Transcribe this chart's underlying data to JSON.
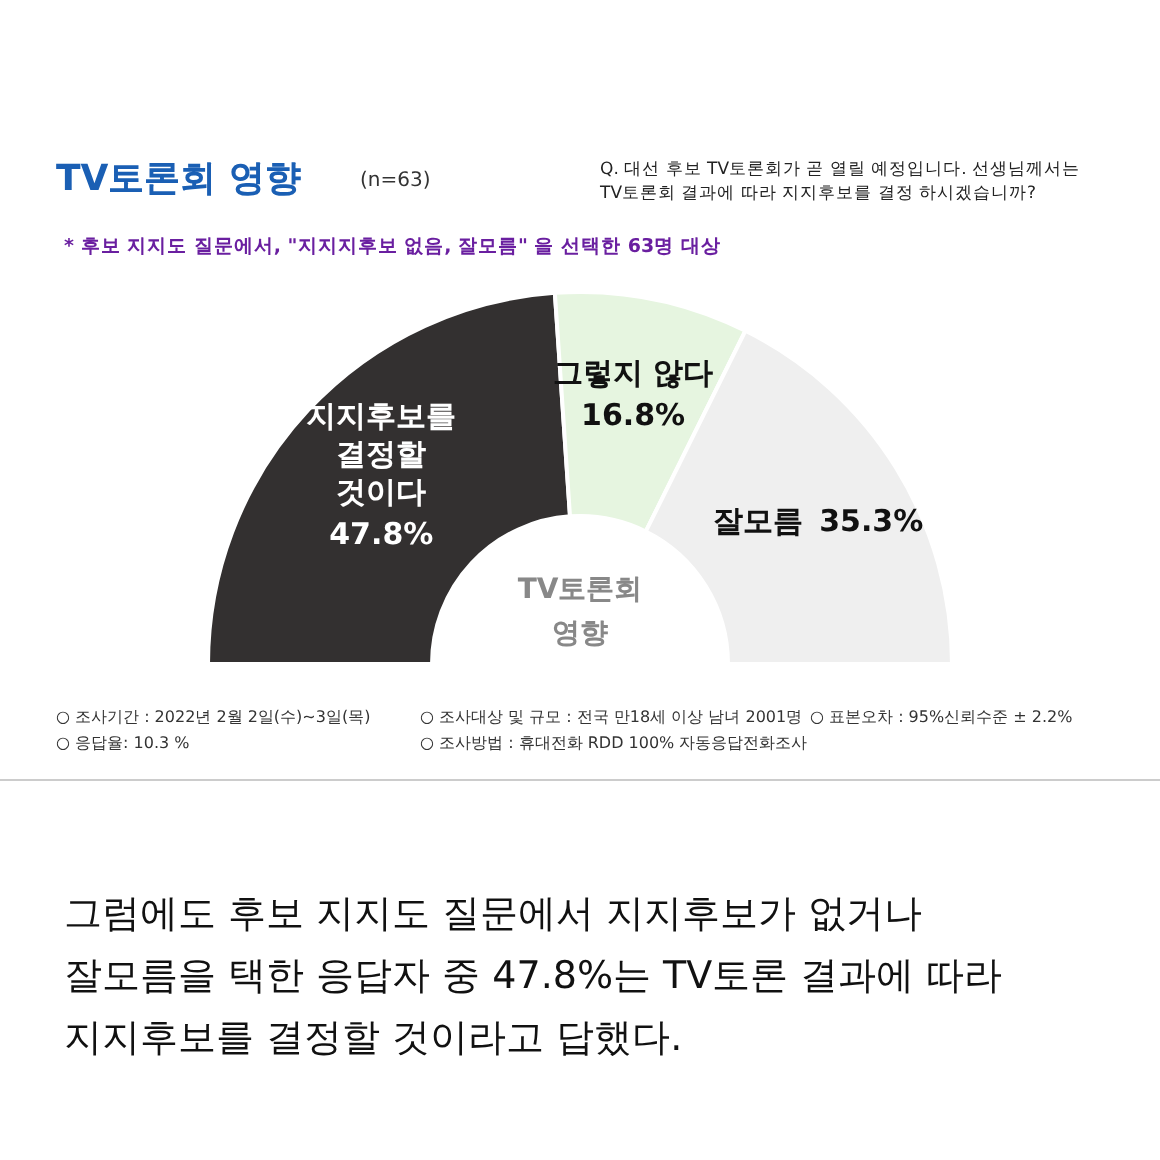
{
  "chart_data": {
    "type": "donut",
    "title": "TV토론회 영향",
    "categories": [
      "지지후보를 결정할 것이다",
      "그렇지 않다",
      "잘모름"
    ],
    "values": [
      47.8,
      16.8,
      35.3
    ],
    "colors": [
      "#333030",
      "#e6f5e0",
      "#efefef"
    ],
    "value_labels": [
      "47.8%",
      "16.8%",
      "35.3%"
    ],
    "annotations": [
      "(n=63)",
      "Q. 대선 후보 TV토론회가 곧 열릴 예정입니다. 선생님께서는\nTV토론회 결과에 따라 지지후보를 결정 하시겠습니까?",
      "* 후보 지지도 질문에서, \"지지지후보 없음, 잘모름\" 을 선택한 63명 대상",
      "TV토론회\n영향",
      "○ 조사기간 : 2022년 2월 2일(수)~3일(목)",
      "○ 조사대상 및 규모 : 전국 만18세 이상 남녀 2001명",
      "○ 표본오차 : 95%신뢰수준 ± 2.2%",
      "○ 응답율: 10.3 %",
      "○ 조사방법 : 휴대전화 RDD 100% 자동응답전화조사",
      "그럼에도 후보 지지도 질문에서 지지후보가 없거나\n잘모름을 택한 응답자 중 47.8%는 TV토론 결과에 따라\n지지후보를 결정할 것이라고 답했다."
    ]
  }
}
